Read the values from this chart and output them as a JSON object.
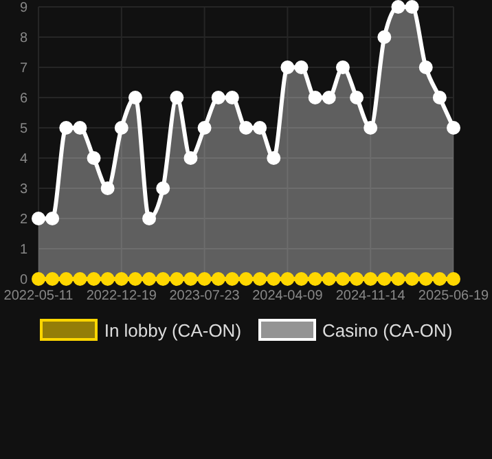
{
  "chart_data": {
    "type": "area",
    "categories": [
      "2022-05-11",
      null,
      null,
      null,
      null,
      null,
      "2022-12-19",
      null,
      null,
      null,
      null,
      null,
      "2023-07-23",
      null,
      null,
      null,
      null,
      null,
      "2024-04-09",
      null,
      null,
      null,
      null,
      null,
      "2024-11-14",
      null,
      null,
      null,
      null,
      null,
      "2025-06-19"
    ],
    "series": [
      {
        "name": "In lobby (CA-ON)",
        "type": "line",
        "color": "#ffd700",
        "values": [
          0,
          0,
          0,
          0,
          0,
          0,
          0,
          0,
          0,
          0,
          0,
          0,
          0,
          0,
          0,
          0,
          0,
          0,
          0,
          0,
          0,
          0,
          0,
          0,
          0,
          0,
          0,
          0,
          0,
          0,
          0
        ]
      },
      {
        "name": "Casino (CA-ON)",
        "color": "#ffffff",
        "values": [
          2,
          2,
          5,
          5,
          4,
          3,
          5,
          6,
          2,
          3,
          6,
          4,
          5,
          6,
          6,
          5,
          5,
          4,
          7,
          7,
          6,
          6,
          7,
          6,
          5,
          8,
          9,
          9,
          7,
          6,
          5
        ]
      }
    ],
    "ylim": [
      0,
      9
    ],
    "yticks": [
      0,
      1,
      2,
      3,
      4,
      5,
      6,
      7,
      8,
      9
    ],
    "grid": true,
    "legend": "bottom",
    "marker": "circle"
  }
}
